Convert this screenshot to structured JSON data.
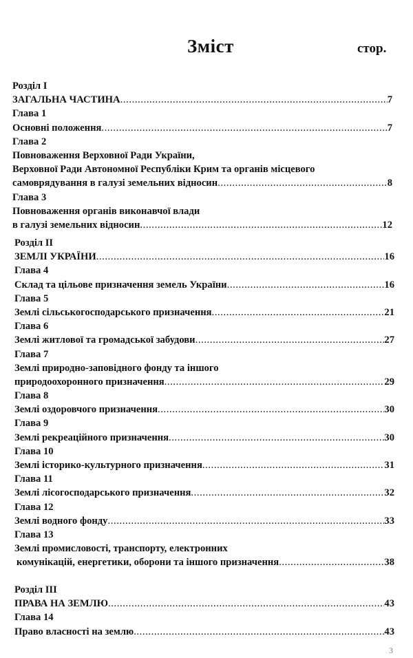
{
  "title": "Зміст",
  "pages_label": "стор.",
  "sections": [
    {
      "lines": [
        {
          "text": "Розділ I"
        },
        {
          "text": "ЗАГАЛЬНА ЧАСТИНА",
          "page": "7"
        },
        {
          "text": "Глава 1"
        },
        {
          "text": "Основні положення",
          "page": "7"
        },
        {
          "text": "Глава 2"
        },
        {
          "text": "Повноваження Верховної Ради України,"
        },
        {
          "text": "Верховної Ради Автономної Республіки Крим та органів місцевого"
        },
        {
          "text": "самоврядування в галузі земельних відносин",
          "page": "8"
        },
        {
          "text": "Глава 3"
        },
        {
          "text": "Повноваження органів виконавчої влади"
        },
        {
          "text": "в галузі земельних відносин",
          "page": "12"
        }
      ]
    },
    {
      "lines": [
        {
          "text": "Розділ II"
        },
        {
          "text": "ЗЕМЛІ УКРАЇНИ",
          "page": "16"
        },
        {
          "text": "Глава 4"
        },
        {
          "text": "Склад та цільове призначення земель України",
          "page": "16"
        },
        {
          "text": "Глава 5"
        },
        {
          "text": "Землі сільськогосподарського призначення",
          "page": "21"
        },
        {
          "text": "Глава 6"
        },
        {
          "text": "Землі житлової та громадської забудови",
          "page": "27"
        },
        {
          "text": "Глава 7"
        },
        {
          "text": "Землі природно-заповідного фонду та іншого"
        },
        {
          "text": "природоохоронного призначення",
          "page": "29"
        },
        {
          "text": "Глава 8"
        },
        {
          "text": "Землі оздоровчого призначення",
          "page": "30"
        },
        {
          "text": "Глава 9"
        },
        {
          "text": "Землі рекреаційного призначення",
          "page": "30"
        },
        {
          "text": "Глава 10"
        },
        {
          "text": "Землі історико-культурного призначення",
          "page": "31"
        },
        {
          "text": "Глава 11"
        },
        {
          "text": "Землі лісогосподарського призначення",
          "page": "32"
        },
        {
          "text": "Глава 12"
        },
        {
          "text": "Землі водного фонду",
          "page": "33"
        },
        {
          "text": "Глава 13"
        },
        {
          "text": "Землі промисловості, транспорту, електронних"
        },
        {
          "text": "комунікацій, енергетики, оборони та іншого призначення",
          "page": "38"
        }
      ]
    },
    {
      "lines": [
        {
          "text": "Розділ III"
        },
        {
          "text": "ПРАВА НА ЗЕМЛЮ",
          "page": "43"
        },
        {
          "text": "Глава 14"
        },
        {
          "text": "Право власності на землю",
          "page": "43"
        }
      ]
    }
  ],
  "folio": "3"
}
